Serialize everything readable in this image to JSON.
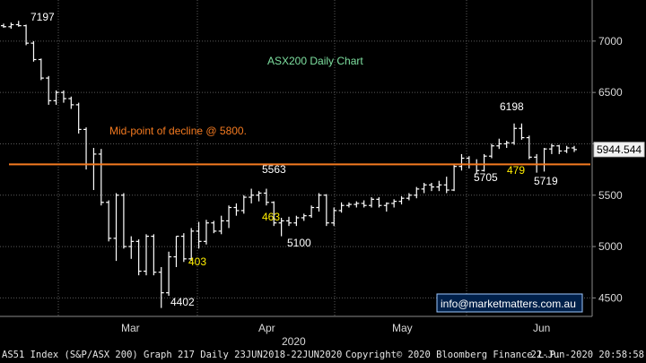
{
  "chart_data": {
    "type": "ohlc",
    "title": "ASX200 Daily Chart",
    "ylim": [
      4320,
      7400
    ],
    "y_ticks": [
      4500,
      5000,
      5500,
      6000,
      6500,
      7000
    ],
    "y_tick_labels": [
      "4500",
      "5000",
      "5500",
      "",
      "6500",
      "7000"
    ],
    "x_month_labels": [
      "Mar",
      "Apr",
      "May",
      "Jun"
    ],
    "x_year_label": "2020",
    "last_price": "5944.544",
    "last_price_value": 5944.5,
    "midpoint_line": {
      "value": 5800,
      "label": "Mid-point of decline @ 5800.",
      "color": "#f47a20"
    },
    "price_annotations": [
      "7197",
      "4402",
      "5563",
      "5100",
      "6198",
      "5705",
      "5719"
    ],
    "move_annotations": [
      "403",
      "463",
      "479"
    ],
    "watermark": "info@marketmatters.com.au",
    "series": [
      {
        "bars": [
          [
            7150,
            7170,
            7130,
            7140
          ],
          [
            7140,
            7180,
            7120,
            7160
          ],
          [
            7160,
            7197,
            7140,
            7150
          ],
          [
            7150,
            7160,
            6960,
            6980
          ],
          [
            6980,
            7000,
            6800,
            6820
          ],
          [
            6820,
            6830,
            6620,
            6640
          ],
          [
            6640,
            6660,
            6380,
            6420
          ],
          [
            6420,
            6520,
            6380,
            6500
          ],
          [
            6500,
            6520,
            6400,
            6440
          ],
          [
            6440,
            6460,
            6340,
            6380
          ],
          [
            6380,
            6400,
            6100,
            6140
          ],
          [
            6140,
            6160,
            5750,
            5800
          ],
          [
            5800,
            5960,
            5550,
            5900
          ],
          [
            5900,
            5950,
            5400,
            5430
          ],
          [
            5430,
            5450,
            5050,
            5080
          ],
          [
            5080,
            5520,
            4860,
            5500
          ],
          [
            5500,
            5520,
            4980,
            5000
          ],
          [
            5000,
            5100,
            4880,
            5050
          ],
          [
            5050,
            5070,
            4720,
            4760
          ],
          [
            4760,
            5120,
            4720,
            5100
          ],
          [
            5100,
            5120,
            4720,
            4750
          ],
          [
            4750,
            4800,
            4402,
            4550
          ],
          [
            4550,
            4950,
            4520,
            4900
          ],
          [
            4900,
            5100,
            4800,
            5100
          ],
          [
            5100,
            5130,
            4850,
            4880
          ],
          [
            4880,
            5180,
            4860,
            5150
          ],
          [
            5150,
            5240,
            4980,
            5050
          ],
          [
            5050,
            5260,
            5020,
            5230
          ],
          [
            5230,
            5250,
            5130,
            5150
          ],
          [
            5150,
            5300,
            5120,
            5250
          ],
          [
            5250,
            5400,
            5180,
            5380
          ],
          [
            5380,
            5420,
            5300,
            5350
          ],
          [
            5350,
            5500,
            5320,
            5480
          ],
          [
            5480,
            5563,
            5420,
            5500
          ],
          [
            5500,
            5540,
            5440,
            5520
          ],
          [
            5520,
            5563,
            5400,
            5430
          ],
          [
            5430,
            5440,
            5200,
            5230
          ],
          [
            5230,
            5280,
            5100,
            5250
          ],
          [
            5250,
            5290,
            5200,
            5230
          ],
          [
            5230,
            5300,
            5200,
            5280
          ],
          [
            5280,
            5320,
            5250,
            5300
          ],
          [
            5300,
            5400,
            5280,
            5380
          ],
          [
            5380,
            5520,
            5340,
            5500
          ],
          [
            5500,
            5510,
            5200,
            5230
          ],
          [
            5230,
            5380,
            5200,
            5350
          ],
          [
            5350,
            5430,
            5330,
            5400
          ],
          [
            5400,
            5430,
            5380,
            5410
          ],
          [
            5410,
            5440,
            5380,
            5420
          ],
          [
            5420,
            5450,
            5380,
            5400
          ],
          [
            5400,
            5480,
            5380,
            5460
          ],
          [
            5460,
            5480,
            5380,
            5400
          ],
          [
            5400,
            5430,
            5340,
            5420
          ],
          [
            5420,
            5460,
            5380,
            5440
          ],
          [
            5440,
            5490,
            5410,
            5470
          ],
          [
            5470,
            5520,
            5450,
            5500
          ],
          [
            5500,
            5580,
            5470,
            5560
          ],
          [
            5560,
            5620,
            5520,
            5600
          ],
          [
            5600,
            5620,
            5540,
            5580
          ],
          [
            5580,
            5640,
            5540,
            5600
          ],
          [
            5600,
            5680,
            5520,
            5550
          ],
          [
            5550,
            5800,
            5540,
            5780
          ],
          [
            5780,
            5900,
            5740,
            5860
          ],
          [
            5860,
            5880,
            5760,
            5800
          ],
          [
            5800,
            5850,
            5705,
            5740
          ],
          [
            5740,
            5900,
            5730,
            5880
          ],
          [
            5880,
            6000,
            5860,
            5980
          ],
          [
            5980,
            6050,
            5950,
            6000
          ],
          [
            6000,
            6030,
            5960,
            6010
          ],
          [
            6010,
            6198,
            5990,
            6150
          ],
          [
            6150,
            6198,
            6040,
            6060
          ],
          [
            6060,
            6080,
            5850,
            5870
          ],
          [
            5870,
            5900,
            5719,
            5800
          ],
          [
            5800,
            5960,
            5730,
            5950
          ],
          [
            5950,
            6000,
            5900,
            5980
          ],
          [
            5980,
            5990,
            5900,
            5930
          ],
          [
            5930,
            5980,
            5910,
            5960
          ],
          [
            5960,
            5980,
            5920,
            5944
          ]
        ]
      }
    ]
  },
  "footer": {
    "left": "AS51 Index (S&P/ASX 200) Graph 217  Daily 23JUN2018-22JUN2020",
    "middle": "Copyright© 2020 Bloomberg Finance L.P.",
    "right": "22-Jun-2020 20:58:58"
  },
  "colors": {
    "background": "#000000",
    "bars": "#ffffff",
    "grid": "#5a5a5a",
    "midpoint": "#f47a20",
    "title": "#7ee0a0",
    "annotation": "#ffffff",
    "move": "#ffee00",
    "watermark_border": "#9ec8ff"
  }
}
